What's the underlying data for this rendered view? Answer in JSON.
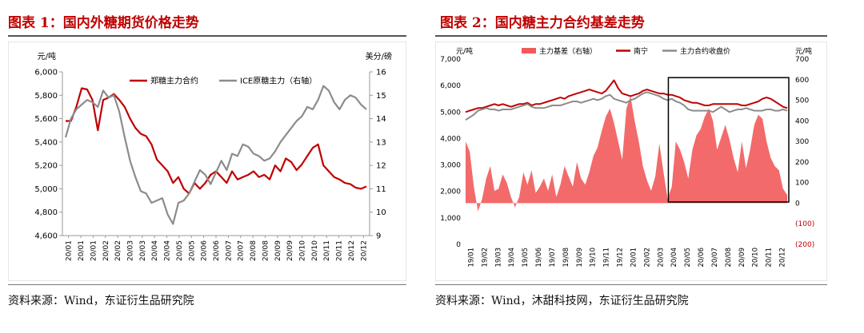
{
  "figures": [
    {
      "title": "图表 1：国内外糖期货价格走势",
      "source": "资料来源：Wind，东证衍生品研究院"
    },
    {
      "title": "图表 2：国内糖主力合约基差走势",
      "source": "资料来源：Wind，沐甜科技网，东证衍生品研究院"
    }
  ],
  "chart_data": [
    {
      "type": "line",
      "left_unit": "元/吨",
      "right_unit": "美分/磅",
      "x_tick_labels": [
        "20/01",
        "20/01",
        "20/01",
        "20/02",
        "20/02",
        "20/03",
        "20/03",
        "20/04",
        "20/04",
        "20/05",
        "20/05",
        "20/06",
        "20/06",
        "20/07",
        "20/07",
        "20/08",
        "20/08",
        "20/09",
        "20/09",
        "20/10",
        "20/10",
        "20/11",
        "20/11",
        "20/12",
        "20/12"
      ],
      "left_ticks": [
        "4,600",
        "4,800",
        "5,000",
        "5,200",
        "5,400",
        "5,600",
        "5,800",
        "6,000"
      ],
      "right_ticks": [
        "9",
        "10",
        "11",
        "12",
        "13",
        "14",
        "15",
        "16"
      ],
      "left_ylim": [
        4600,
        6000
      ],
      "right_ylim": [
        9,
        16
      ],
      "grid": false,
      "legend_position": "top-center",
      "series": [
        {
          "name": "郑糖主力合约",
          "axis": "left",
          "color": "#c00000",
          "values": [
            5580,
            5580,
            5700,
            5860,
            5850,
            5760,
            5500,
            5760,
            5780,
            5810,
            5760,
            5700,
            5600,
            5520,
            5470,
            5450,
            5380,
            5250,
            5200,
            5150,
            5050,
            5100,
            5000,
            4960,
            5050,
            5000,
            5050,
            5120,
            5150,
            5100,
            5050,
            5150,
            5080,
            5100,
            5120,
            5150,
            5100,
            5120,
            5080,
            5200,
            5150,
            5260,
            5230,
            5160,
            5210,
            5280,
            5350,
            5380,
            5200,
            5150,
            5100,
            5080,
            5050,
            5040,
            5010,
            5000,
            5020
          ]
        },
        {
          "name": "ICE原糖主力（右轴）",
          "axis": "right",
          "color": "#8c8c8c",
          "values": [
            13.2,
            14.0,
            14.4,
            14.6,
            14.8,
            14.7,
            14.5,
            15.2,
            14.9,
            15.0,
            14.3,
            13.2,
            12.2,
            11.5,
            10.9,
            10.8,
            10.4,
            10.5,
            10.6,
            9.9,
            9.5,
            10.4,
            10.5,
            10.8,
            11.3,
            11.8,
            11.6,
            11.2,
            11.7,
            12.2,
            11.8,
            12.5,
            12.4,
            12.9,
            12.8,
            12.5,
            12.4,
            12.2,
            12.3,
            12.6,
            13.0,
            13.3,
            13.6,
            13.9,
            14.1,
            14.5,
            14.4,
            14.8,
            15.4,
            15.2,
            14.7,
            14.4,
            14.8,
            15.0,
            14.9,
            14.6,
            14.4
          ]
        }
      ]
    },
    {
      "type": "line",
      "left_unit": "元/吨",
      "right_unit": "元/吨",
      "x_tick_labels": [
        "19/01",
        "19/02",
        "19/03",
        "19/04",
        "19/05",
        "19/06",
        "19/07",
        "19/08",
        "19/09",
        "19/10",
        "19/11",
        "19/12",
        "20/01",
        "20/02",
        "20/03",
        "20/04",
        "20/05",
        "20/06",
        "20/07",
        "20/08",
        "20/09",
        "20/10",
        "20/11",
        "20/12"
      ],
      "left_ticks": [
        "0",
        "1,000",
        "2,000",
        "3,000",
        "4,000",
        "5,000",
        "6,000",
        "7,000"
      ],
      "right_ticks": [
        "(200)",
        "(100)",
        "0",
        "100",
        "200",
        "300",
        "400",
        "500",
        "600",
        "700"
      ],
      "left_ylim": [
        0,
        7000
      ],
      "right_ylim": [
        -200,
        700
      ],
      "grid": false,
      "legend_position": "top",
      "highlight_box": {
        "x_start": "20/04",
        "x_end": "20/12",
        "y_range": [
          1600,
          6300
        ]
      },
      "series": [
        {
          "name": "主力基差（右轴）",
          "type": "area",
          "axis": "right",
          "color": "#f25a5a",
          "values": [
            300,
            250,
            80,
            -40,
            20,
            120,
            180,
            60,
            70,
            140,
            100,
            30,
            -20,
            30,
            150,
            90,
            160,
            50,
            80,
            120,
            60,
            140,
            30,
            90,
            180,
            130,
            80,
            200,
            120,
            90,
            150,
            230,
            270,
            350,
            420,
            460,
            390,
            300,
            210,
            460,
            520,
            400,
            300,
            180,
            110,
            60,
            130,
            290,
            150,
            20,
            80,
            300,
            260,
            200,
            120,
            260,
            330,
            360,
            420,
            460,
            400,
            260,
            320,
            380,
            310,
            220,
            150,
            300,
            170,
            260,
            380,
            430,
            410,
            300,
            220,
            180,
            160,
            70,
            40
          ]
        },
        {
          "name": "南宁",
          "type": "line",
          "axis": "left",
          "color": "#c00000",
          "values": [
            5000,
            5050,
            5100,
            5150,
            5150,
            5200,
            5250,
            5300,
            5250,
            5300,
            5250,
            5200,
            5250,
            5300,
            5300,
            5350,
            5250,
            5300,
            5300,
            5350,
            5400,
            5450,
            5500,
            5550,
            5500,
            5600,
            5650,
            5700,
            5750,
            5800,
            5850,
            5800,
            5750,
            5700,
            5800,
            6000,
            6200,
            5900,
            5700,
            5650,
            5600,
            5650,
            5700,
            5800,
            5850,
            5800,
            5750,
            5700,
            5700,
            5650,
            5650,
            5600,
            5550,
            5450,
            5400,
            5350,
            5350,
            5300,
            5250,
            5250,
            5300,
            5300,
            5300,
            5300,
            5300,
            5300,
            5300,
            5250,
            5250,
            5300,
            5350,
            5400,
            5500,
            5550,
            5500,
            5400,
            5300,
            5200,
            5150
          ]
        },
        {
          "name": "主力合约收盘价",
          "type": "line",
          "axis": "left",
          "color": "#8c8c8c",
          "values": [
            4700,
            4800,
            4900,
            5050,
            5100,
            5150,
            5100,
            5100,
            5050,
            5100,
            5100,
            5100,
            5150,
            5200,
            5250,
            5300,
            5200,
            5150,
            5150,
            5150,
            5200,
            5250,
            5250,
            5250,
            5300,
            5350,
            5400,
            5400,
            5350,
            5400,
            5450,
            5500,
            5450,
            5500,
            5600,
            5650,
            5500,
            5450,
            5400,
            5350,
            5450,
            5500,
            5600,
            5700,
            5750,
            5700,
            5650,
            5600,
            5500,
            5450,
            5500,
            5400,
            5350,
            5250,
            5100,
            5050,
            5050,
            5050,
            5050,
            5050,
            5000,
            5100,
            5200,
            5100,
            5000,
            5050,
            5100,
            5100,
            5150,
            5100,
            5050,
            5050,
            5050,
            5100,
            5100,
            5050,
            5050,
            5100,
            5050
          ]
        }
      ]
    }
  ]
}
